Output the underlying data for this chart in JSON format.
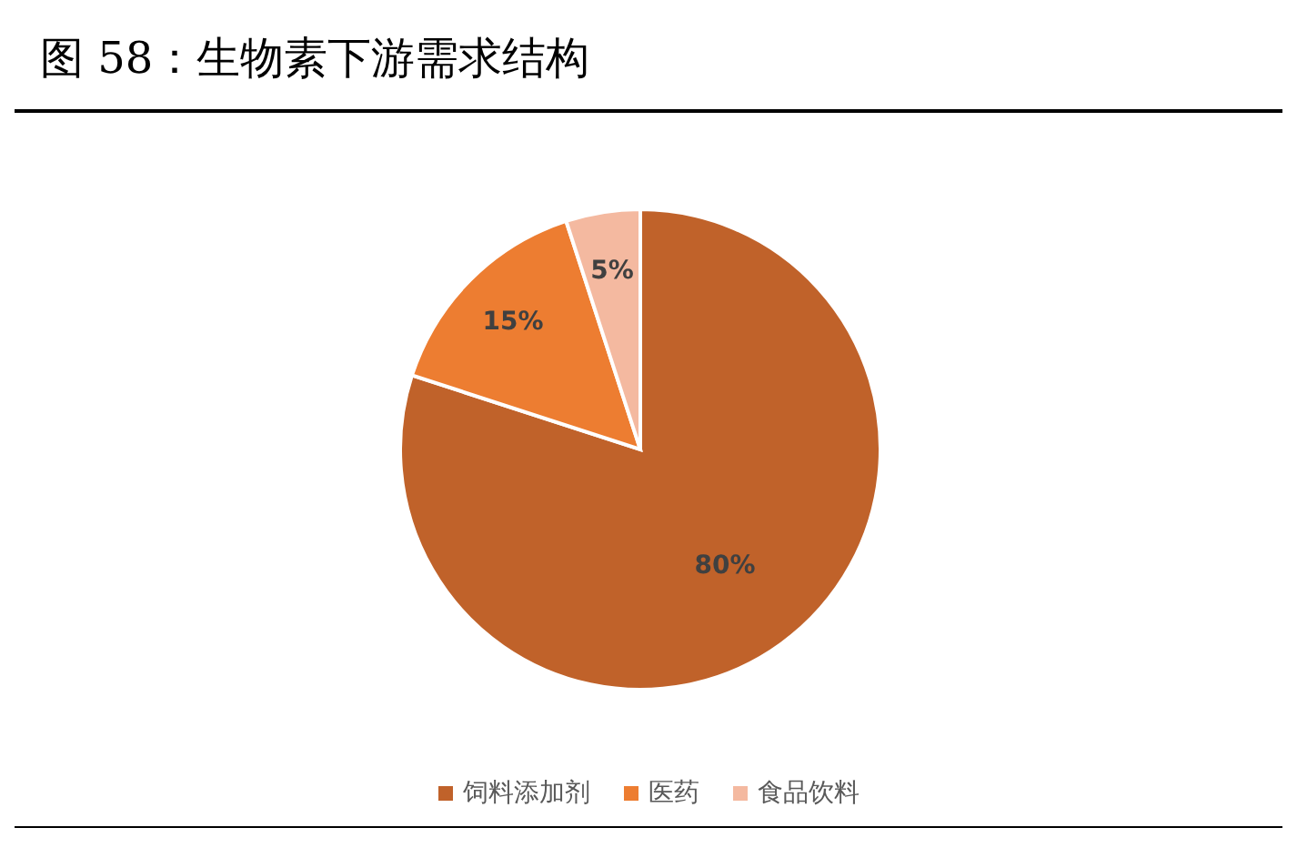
{
  "chart_data": {
    "type": "pie",
    "title": "图 58：生物素下游需求结构",
    "categories": [
      "饲料添加剂",
      "医药",
      "食品饮料"
    ],
    "values": [
      80,
      15,
      5
    ],
    "colors": [
      "#c0622a",
      "#ed7d31",
      "#f4b9a0"
    ],
    "value_labels": [
      "80%",
      "15%",
      "5%"
    ],
    "legend": "bottom"
  }
}
